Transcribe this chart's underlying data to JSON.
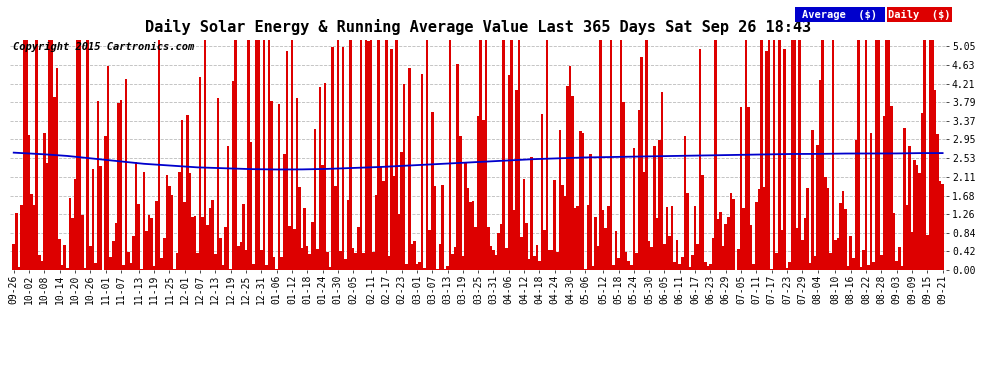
{
  "title": "Daily Solar Energy & Running Average Value Last 365 Days Sat Sep 26 18:43",
  "copyright_text": "Copyright 2015 Cartronics.com",
  "legend_avg_label": "Average  ($)",
  "legend_daily_label": "Daily  ($)",
  "bar_color": "#dd0000",
  "line_color": "#0000cc",
  "bg_color": "#ffffff",
  "grid_color": "#bbbbbb",
  "yticks": [
    0.0,
    0.42,
    0.84,
    1.26,
    1.68,
    2.11,
    2.53,
    2.95,
    3.37,
    3.79,
    4.21,
    4.63,
    5.05
  ],
  "ylim": [
    0.0,
    5.25
  ],
  "x_labels": [
    "09-26",
    "10-02",
    "10-08",
    "10-14",
    "10-20",
    "10-26",
    "11-01",
    "11-07",
    "11-13",
    "11-19",
    "11-25",
    "12-01",
    "12-07",
    "12-13",
    "12-19",
    "12-25",
    "12-31",
    "01-06",
    "01-12",
    "01-18",
    "01-24",
    "01-30",
    "02-05",
    "02-11",
    "02-17",
    "02-23",
    "03-01",
    "03-07",
    "03-13",
    "03-19",
    "03-25",
    "03-31",
    "04-06",
    "04-12",
    "04-18",
    "04-24",
    "04-30",
    "05-06",
    "05-12",
    "05-18",
    "05-24",
    "05-30",
    "06-05",
    "06-11",
    "06-17",
    "06-23",
    "06-29",
    "07-05",
    "07-11",
    "07-17",
    "07-23",
    "07-29",
    "08-04",
    "08-10",
    "08-16",
    "08-22",
    "08-28",
    "09-03",
    "09-09",
    "09-15",
    "09-21"
  ],
  "n_days": 365,
  "title_fontsize": 11,
  "tick_fontsize": 7,
  "copyright_fontsize": 7.5,
  "legend_fontsize": 7.5,
  "avg_curve": [
    2.65,
    2.62,
    2.58,
    2.52,
    2.46,
    2.4,
    2.36,
    2.32,
    2.3,
    2.28,
    2.27,
    2.27,
    2.28,
    2.3,
    2.32,
    2.35,
    2.38,
    2.41,
    2.44,
    2.47,
    2.5,
    2.52,
    2.54,
    2.55,
    2.56,
    2.57,
    2.58,
    2.59,
    2.6,
    2.61,
    2.62,
    2.62,
    2.63,
    2.63,
    2.63,
    2.64,
    2.64
  ]
}
